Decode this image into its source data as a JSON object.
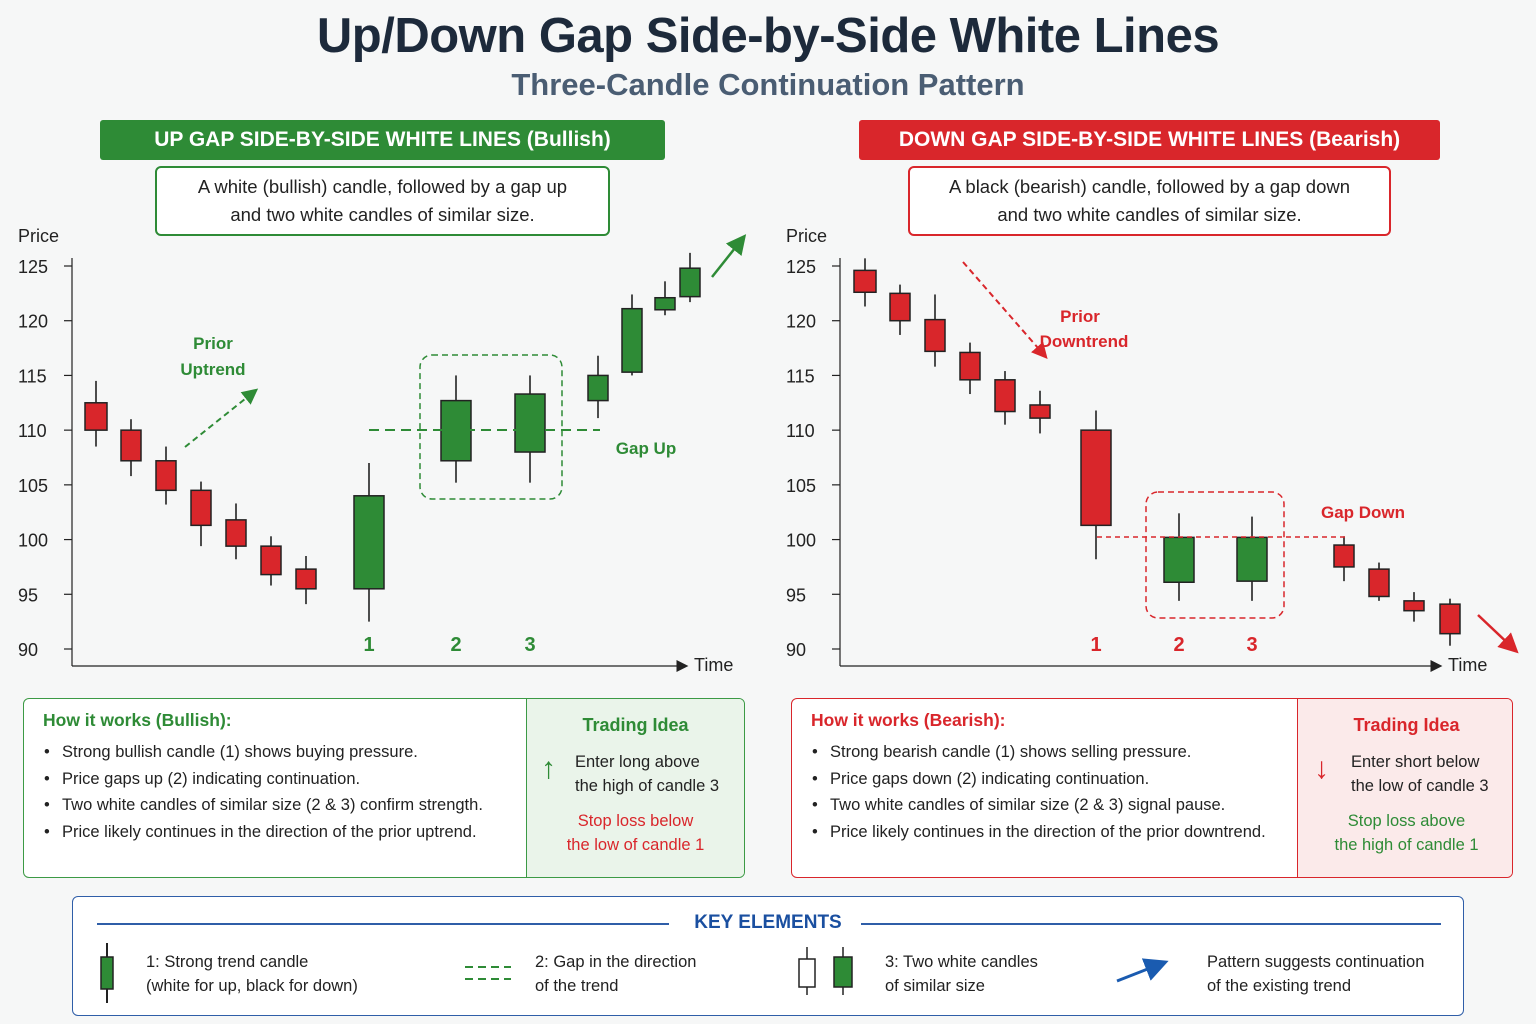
{
  "title": "Up/Down Gap Side-by-Side White Lines",
  "subtitle": "Three-Candle Continuation Pattern",
  "colors": {
    "bull": "#2e8b36",
    "bear": "#d9262b",
    "key": "#1a4fa0",
    "ink": "#1d2a3b"
  },
  "bullish": {
    "banner": "UP GAP SIDE-BY-SIDE WHITE LINES (Bullish)",
    "desc_line1": "A white (bullish) candle, followed by a gap up",
    "desc_line2": "and two white candles of similar size.",
    "how_title": "How it works (Bullish):",
    "bullets": [
      "Strong bullish candle (1) shows buying pressure.",
      "Price gaps up (2) indicating continuation.",
      "Two white candles of similar size (2 & 3) confirm strength.",
      "Price likely continues in the direction of the prior uptrend."
    ],
    "trade_title": "Trading Idea",
    "trade_icon": "up-arrow-icon",
    "entry_line1": "Enter long above",
    "entry_line2": "the high of candle 3",
    "stop_line1": "Stop loss below",
    "stop_line2": "the low of candle 1"
  },
  "bearish": {
    "banner": "DOWN GAP SIDE-BY-SIDE WHITE LINES (Bearish)",
    "desc_line1": "A black (bearish) candle, followed by a gap down",
    "desc_line2": "and two white candles of similar size.",
    "how_title": "How it works (Bearish):",
    "bullets": [
      "Strong bearish candle (1) shows selling pressure.",
      "Price gaps down (2) indicating continuation.",
      "Two white candles of similar size (2 & 3) signal pause.",
      "Price likely continues in the direction of the prior downtrend."
    ],
    "trade_title": "Trading Idea",
    "trade_icon": "down-arrow-icon",
    "entry_line1": "Enter short below",
    "entry_line2": "the low of candle 3",
    "stop_line1": "Stop loss above",
    "stop_line2": "the high of candle 1"
  },
  "key": {
    "title": "KEY ELEMENTS",
    "item1_line1": "1: Strong trend candle",
    "item1_line2": "(white for up, black for down)",
    "item2_line1": "2: Gap in the direction",
    "item2_line2": "of the trend",
    "item3_line1": "3: Two white candles",
    "item3_line2": "of similar size",
    "item4_line1": "Pattern suggests continuation",
    "item4_line2": "of the existing trend"
  },
  "chart_data": [
    {
      "type": "candlestick",
      "ylabel": "Price",
      "xlabel": "Time",
      "ylim": [
        90,
        125
      ],
      "yticks": [
        90,
        95,
        100,
        105,
        110,
        115,
        120,
        125
      ],
      "candles": [
        {
          "open": 112.5,
          "close": 110.0,
          "high": 114.5,
          "low": 108.5
        },
        {
          "open": 110.0,
          "close": 107.2,
          "high": 111.0,
          "low": 105.8
        },
        {
          "open": 107.2,
          "close": 104.5,
          "high": 108.5,
          "low": 103.2
        },
        {
          "open": 104.5,
          "close": 101.3,
          "high": 105.3,
          "low": 99.4
        },
        {
          "open": 101.8,
          "close": 99.4,
          "high": 103.3,
          "low": 98.2
        },
        {
          "open": 99.4,
          "close": 96.8,
          "high": 100.3,
          "low": 95.8
        },
        {
          "open": 97.3,
          "close": 95.5,
          "high": 98.5,
          "low": 94.1
        },
        {
          "open": 95.5,
          "close": 104.0,
          "high": 107.0,
          "low": 92.5,
          "label": "1"
        },
        {
          "open": 107.2,
          "close": 112.7,
          "high": 115.0,
          "low": 105.2,
          "label": "2"
        },
        {
          "open": 108.0,
          "close": 113.3,
          "high": 115.0,
          "low": 105.2,
          "label": "3"
        },
        {
          "open": 112.7,
          "close": 115.0,
          "high": 116.8,
          "low": 111.1
        },
        {
          "open": 115.3,
          "close": 121.1,
          "high": 122.4,
          "low": 115.0
        },
        {
          "open": 121.0,
          "close": 122.1,
          "high": 123.6,
          "low": 120.5
        },
        {
          "open": 122.2,
          "close": 124.8,
          "high": 126.2,
          "low": 121.7
        }
      ],
      "annotations": {
        "prior_trend": "Prior\nUptrend",
        "gap": "Gap Up"
      }
    },
    {
      "type": "candlestick",
      "ylabel": "Price",
      "xlabel": "Time",
      "ylim": [
        90,
        125
      ],
      "yticks": [
        90,
        95,
        100,
        105,
        110,
        115,
        120,
        125
      ],
      "candles": [
        {
          "open": 124.6,
          "close": 122.6,
          "high": 125.7,
          "low": 121.3
        },
        {
          "open": 122.5,
          "close": 120.0,
          "high": 123.3,
          "low": 118.7
        },
        {
          "open": 120.1,
          "close": 117.2,
          "high": 122.4,
          "low": 115.8
        },
        {
          "open": 117.1,
          "close": 114.6,
          "high": 118.0,
          "low": 113.3
        },
        {
          "open": 114.6,
          "close": 111.7,
          "high": 115.4,
          "low": 110.5
        },
        {
          "open": 112.3,
          "close": 111.1,
          "high": 113.6,
          "low": 109.7
        },
        {
          "open": 110.0,
          "close": 101.3,
          "high": 111.8,
          "low": 98.2,
          "label": "1"
        },
        {
          "open": 96.1,
          "close": 100.2,
          "high": 102.4,
          "low": 94.4,
          "label": "2"
        },
        {
          "open": 96.2,
          "close": 100.2,
          "high": 102.1,
          "low": 94.4,
          "label": "3"
        },
        {
          "open": 99.5,
          "close": 97.5,
          "high": 100.3,
          "low": 96.2
        },
        {
          "open": 97.3,
          "close": 94.8,
          "high": 97.9,
          "low": 94.4
        },
        {
          "open": 94.4,
          "close": 93.5,
          "high": 95.2,
          "low": 92.5
        },
        {
          "open": 94.1,
          "close": 91.4,
          "high": 94.6,
          "low": 90.3
        }
      ],
      "annotations": {
        "prior_trend": "Prior\nDowntrend",
        "gap": "Gap Down"
      }
    }
  ]
}
